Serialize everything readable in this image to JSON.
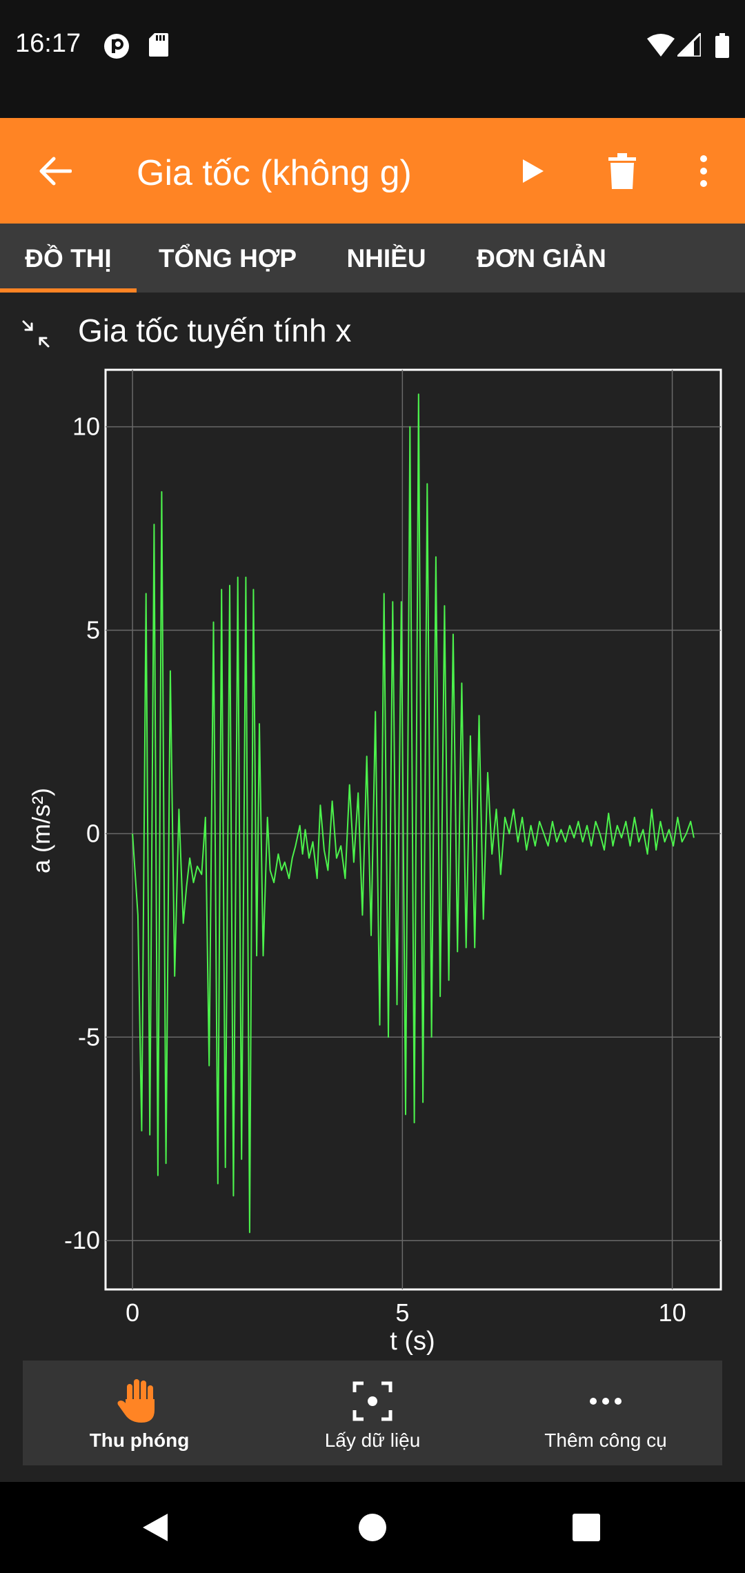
{
  "status_bar": {
    "time": "16:17",
    "icons": [
      "notification-p-icon",
      "sd-card-icon",
      "wifi-icon",
      "signal-icon",
      "battery-icon"
    ]
  },
  "app_bar": {
    "title": "Gia tốc (không g)",
    "background_color": "#ff8424",
    "actions": [
      "back-arrow-icon",
      "play-icon",
      "trash-icon",
      "more-vert-icon"
    ]
  },
  "tabs": [
    {
      "label": "ĐỒ THỊ",
      "selected": true
    },
    {
      "label": "TỔNG HỢP",
      "selected": false
    },
    {
      "label": "NHIỀU",
      "selected": false
    },
    {
      "label": "ĐƠN GIẢN",
      "selected": false
    }
  ],
  "graph": {
    "title": "Gia tốc tuyến tính x"
  },
  "chart_data": {
    "type": "line",
    "xlabel": "t (s)",
    "ylabel": "a (m/s²)",
    "xlim": [
      -0.5,
      10.9
    ],
    "ylim": [
      -11.2,
      11.4
    ],
    "x_ticks": [
      "0",
      "5",
      "10"
    ],
    "y_ticks": [
      "10",
      "5",
      "0",
      "-5",
      "-10"
    ],
    "grid": true,
    "line_color": "#4cf24c",
    "series": [
      {
        "x": [
          0.0,
          0.1,
          0.17,
          0.25,
          0.32,
          0.4,
          0.47,
          0.54,
          0.62,
          0.7,
          0.78,
          0.86,
          0.94,
          1.0,
          1.06,
          1.13,
          1.2,
          1.28,
          1.35,
          1.42,
          1.5,
          1.58,
          1.65,
          1.72,
          1.8,
          1.87,
          1.95,
          2.02,
          2.1,
          2.17,
          2.24,
          2.3,
          2.35,
          2.42,
          2.5,
          2.55,
          2.62,
          2.7,
          2.76,
          2.82,
          2.9,
          2.96,
          3.02,
          3.1,
          3.15,
          3.2,
          3.27,
          3.34,
          3.42,
          3.48,
          3.55,
          3.62,
          3.7,
          3.78,
          3.86,
          3.94,
          4.02,
          4.1,
          4.18,
          4.26,
          4.34,
          4.42,
          4.5,
          4.58,
          4.66,
          4.74,
          4.82,
          4.9,
          4.98,
          5.06,
          5.14,
          5.22,
          5.3,
          5.38,
          5.46,
          5.54,
          5.62,
          5.7,
          5.78,
          5.86,
          5.94,
          6.02,
          6.1,
          6.18,
          6.26,
          6.34,
          6.42,
          6.5,
          6.58,
          6.66,
          6.74,
          6.82,
          6.9,
          6.98,
          7.06,
          7.14,
          7.22,
          7.3,
          7.38,
          7.46,
          7.54,
          7.62,
          7.7,
          7.78,
          7.86,
          7.94,
          8.02,
          8.1,
          8.18,
          8.26,
          8.34,
          8.42,
          8.5,
          8.58,
          8.66,
          8.74,
          8.82,
          8.9,
          8.98,
          9.06,
          9.14,
          9.22,
          9.3,
          9.38,
          9.46,
          9.54,
          9.62,
          9.7,
          9.78,
          9.86,
          9.94,
          10.02,
          10.1,
          10.18,
          10.26,
          10.34,
          10.4
        ],
        "y": [
          0.0,
          -2.0,
          -7.3,
          5.9,
          -7.4,
          7.6,
          -8.4,
          8.4,
          -8.1,
          4.0,
          -3.5,
          0.6,
          -2.2,
          -1.3,
          -0.6,
          -1.2,
          -0.8,
          -1.0,
          0.4,
          -5.7,
          5.2,
          -8.6,
          6.0,
          -8.2,
          6.1,
          -8.9,
          6.3,
          -8.0,
          6.3,
          -9.8,
          6.0,
          -3.0,
          2.7,
          -3.0,
          0.4,
          -0.9,
          -1.2,
          -0.5,
          -0.9,
          -0.7,
          -1.1,
          -0.6,
          -0.3,
          0.2,
          -0.5,
          0.1,
          -0.6,
          -0.2,
          -1.1,
          0.7,
          -0.4,
          -0.9,
          0.8,
          -0.6,
          -0.3,
          -1.1,
          1.2,
          -0.7,
          1.0,
          -2.0,
          1.9,
          -2.5,
          3.0,
          -4.7,
          5.9,
          -5.0,
          5.7,
          -4.2,
          5.7,
          -6.9,
          10.0,
          -7.1,
          10.8,
          -6.6,
          8.6,
          -5.0,
          6.8,
          -4.0,
          5.6,
          -3.6,
          4.9,
          -2.9,
          3.7,
          -2.8,
          2.4,
          -2.8,
          2.9,
          -2.1,
          1.5,
          -0.5,
          0.6,
          -1.0,
          0.4,
          0.0,
          0.6,
          -0.2,
          0.4,
          -0.4,
          0.2,
          -0.3,
          0.3,
          0.0,
          -0.3,
          0.3,
          -0.2,
          0.1,
          -0.2,
          0.2,
          -0.1,
          0.3,
          -0.2,
          0.2,
          -0.3,
          0.3,
          0.0,
          -0.4,
          0.5,
          -0.3,
          0.2,
          -0.1,
          0.3,
          -0.3,
          0.4,
          -0.2,
          0.1,
          -0.5,
          0.6,
          -0.4,
          0.3,
          -0.2,
          0.1,
          -0.3,
          0.4,
          -0.2,
          0.0,
          0.3,
          -0.1
        ]
      }
    ]
  },
  "toolbar": {
    "items": [
      {
        "label": "Thu phóng",
        "icon": "hand-icon",
        "active": true
      },
      {
        "label": "Lấy dữ liệu",
        "icon": "target-icon",
        "active": false
      },
      {
        "label": "Thêm công cụ",
        "icon": "more-horiz-icon",
        "active": false
      }
    ]
  },
  "nav_bar": {
    "buttons": [
      "back-triangle-icon",
      "home-circle-icon",
      "recents-square-icon"
    ]
  }
}
